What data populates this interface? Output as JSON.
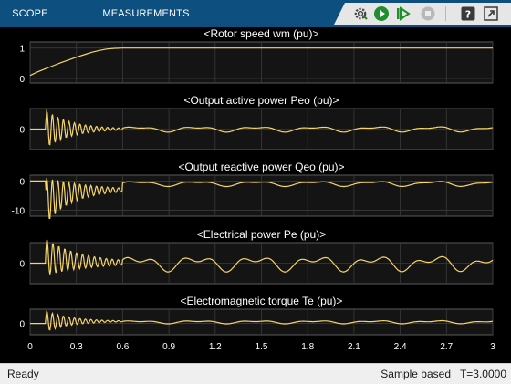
{
  "toolstrip": {
    "tabs": [
      {
        "label": "SCOPE"
      },
      {
        "label": "MEASUREMENTS"
      }
    ],
    "quick_access": [
      {
        "icon": "settings-icon"
      },
      {
        "icon": "run-icon"
      },
      {
        "icon": "step-forward-icon"
      },
      {
        "icon": "stop-icon"
      },
      {
        "icon": "help-icon"
      },
      {
        "icon": "dock-icon"
      }
    ]
  },
  "colors": {
    "toolstrip": "#0d4f7e",
    "plot_background": "#141414",
    "trace": "#f6d56a",
    "grid": "#3a3a3a",
    "text": "#ffffff"
  },
  "chart_data": [
    {
      "type": "line",
      "title": "<Rotor speed  wm (pu)>",
      "yticks": [
        "0",
        "1"
      ],
      "ylim": [
        -0.15,
        1.2
      ],
      "x": [
        0,
        0.05,
        0.1,
        0.15,
        0.2,
        0.25,
        0.3,
        0.35,
        0.4,
        0.45,
        0.5,
        0.55,
        0.6,
        0.7,
        0.8,
        0.9,
        1.0,
        1.2,
        1.4,
        1.6,
        1.8,
        2.0,
        2.2,
        2.4,
        2.6,
        2.8,
        3.0
      ],
      "y": [
        0.1,
        0.22,
        0.32,
        0.42,
        0.52,
        0.61,
        0.7,
        0.78,
        0.86,
        0.92,
        0.97,
        0.99,
        1.0,
        1.0,
        1.0,
        1.0,
        1.0,
        1.0,
        1.0,
        1.0,
        1.0,
        1.0,
        1.0,
        1.0,
        1.0,
        1.0,
        1.0
      ]
    },
    {
      "type": "line",
      "title": "<Output active power   Peo (pu)>",
      "yticks": [
        "0"
      ],
      "ylim": [
        -1.0,
        1.0
      ]
    },
    {
      "type": "line",
      "title": "<Output reactive power  Qeo (pu)>",
      "yticks": [
        "0",
        "-10"
      ],
      "ylim": [
        -12,
        2
      ]
    },
    {
      "type": "line",
      "title": "<Electrical power  Pe (pu)>",
      "yticks": [
        "0"
      ],
      "ylim": [
        -1.0,
        1.0
      ]
    },
    {
      "type": "line",
      "title": "<Electromagnetic torque  Te (pu)>",
      "yticks": [
        "0"
      ],
      "ylim": [
        -0.8,
        1.0
      ]
    }
  ],
  "x_axis": {
    "xlim": [
      0,
      3
    ],
    "ticks": [
      "0",
      "0.3",
      "0.6",
      "0.9",
      "1.2",
      "1.5",
      "1.8",
      "2.1",
      "2.4",
      "2.7",
      "3"
    ]
  },
  "status": {
    "left": "Ready",
    "mode": "Sample based",
    "time": "T=3.0000"
  }
}
